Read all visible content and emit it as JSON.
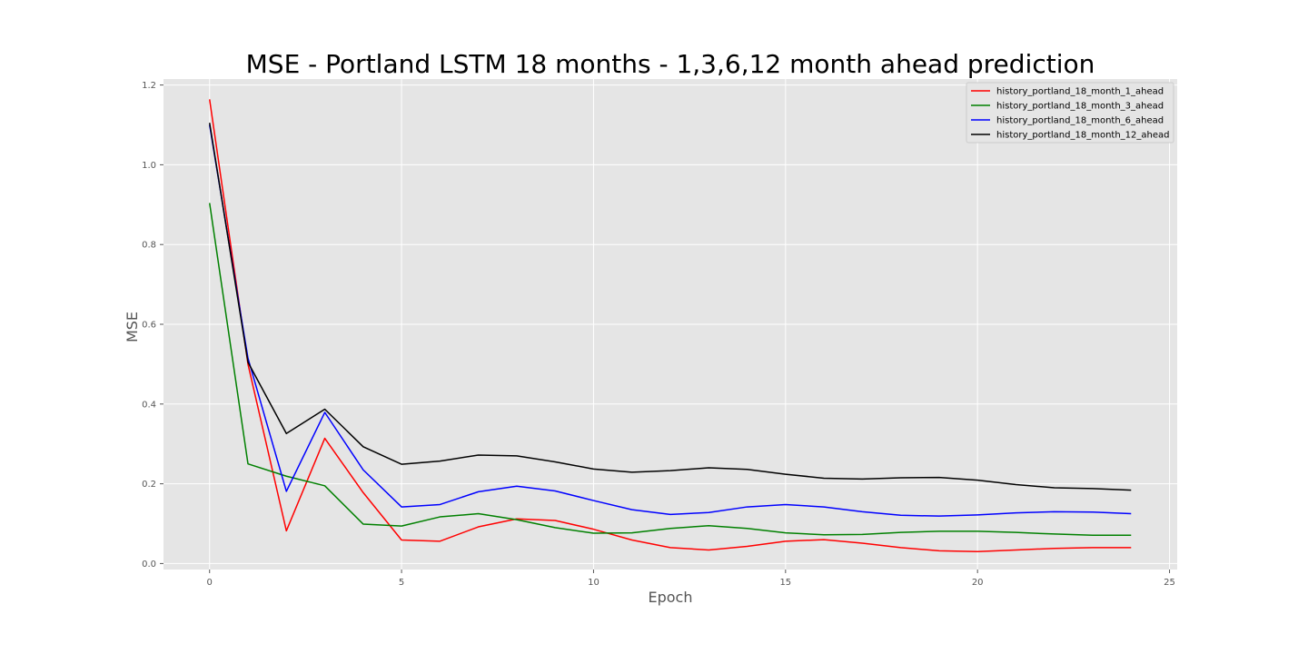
{
  "chart_data": {
    "type": "line",
    "title": "MSE - Portland LSTM 18 months - 1,3,6,12 month ahead prediction",
    "xlabel": "Epoch",
    "ylabel": "MSE",
    "xlim": [
      -1.2,
      25.2
    ],
    "ylim": [
      -0.015,
      1.215
    ],
    "xticks": [
      0,
      5,
      10,
      15,
      20,
      25
    ],
    "yticks": [
      0.0,
      0.2,
      0.4,
      0.6,
      0.8,
      1.0,
      1.2
    ],
    "grid": true,
    "legend_position": "top-right",
    "x": [
      0,
      1,
      2,
      3,
      4,
      5,
      6,
      7,
      8,
      9,
      10,
      11,
      12,
      13,
      14,
      15,
      16,
      17,
      18,
      19,
      20,
      21,
      22,
      23,
      24
    ],
    "series": [
      {
        "name": "history_portland_18_month_1_ahead",
        "color": "#ff0000",
        "values": [
          1.164,
          0.5,
          0.082,
          0.314,
          0.178,
          0.059,
          0.056,
          0.092,
          0.112,
          0.108,
          0.086,
          0.059,
          0.04,
          0.034,
          0.043,
          0.056,
          0.06,
          0.051,
          0.04,
          0.032,
          0.03,
          0.034,
          0.038,
          0.04,
          0.04
        ]
      },
      {
        "name": "history_portland_18_month_3_ahead",
        "color": "#008000",
        "values": [
          0.904,
          0.25,
          0.219,
          0.195,
          0.099,
          0.094,
          0.117,
          0.125,
          0.11,
          0.09,
          0.076,
          0.077,
          0.088,
          0.095,
          0.088,
          0.077,
          0.072,
          0.073,
          0.078,
          0.081,
          0.081,
          0.078,
          0.074,
          0.071,
          0.071
        ]
      },
      {
        "name": "history_portland_18_month_6_ahead",
        "color": "#0000ff",
        "values": [
          1.1,
          0.515,
          0.181,
          0.379,
          0.235,
          0.142,
          0.148,
          0.18,
          0.194,
          0.182,
          0.158,
          0.135,
          0.123,
          0.128,
          0.142,
          0.148,
          0.142,
          0.13,
          0.121,
          0.119,
          0.122,
          0.127,
          0.13,
          0.129,
          0.125
        ]
      },
      {
        "name": "history_portland_18_month_12_ahead",
        "color": "#000000",
        "values": [
          1.105,
          0.505,
          0.326,
          0.387,
          0.293,
          0.249,
          0.257,
          0.272,
          0.27,
          0.255,
          0.237,
          0.229,
          0.233,
          0.24,
          0.236,
          0.224,
          0.214,
          0.212,
          0.215,
          0.216,
          0.209,
          0.198,
          0.19,
          0.188,
          0.184
        ]
      }
    ]
  }
}
